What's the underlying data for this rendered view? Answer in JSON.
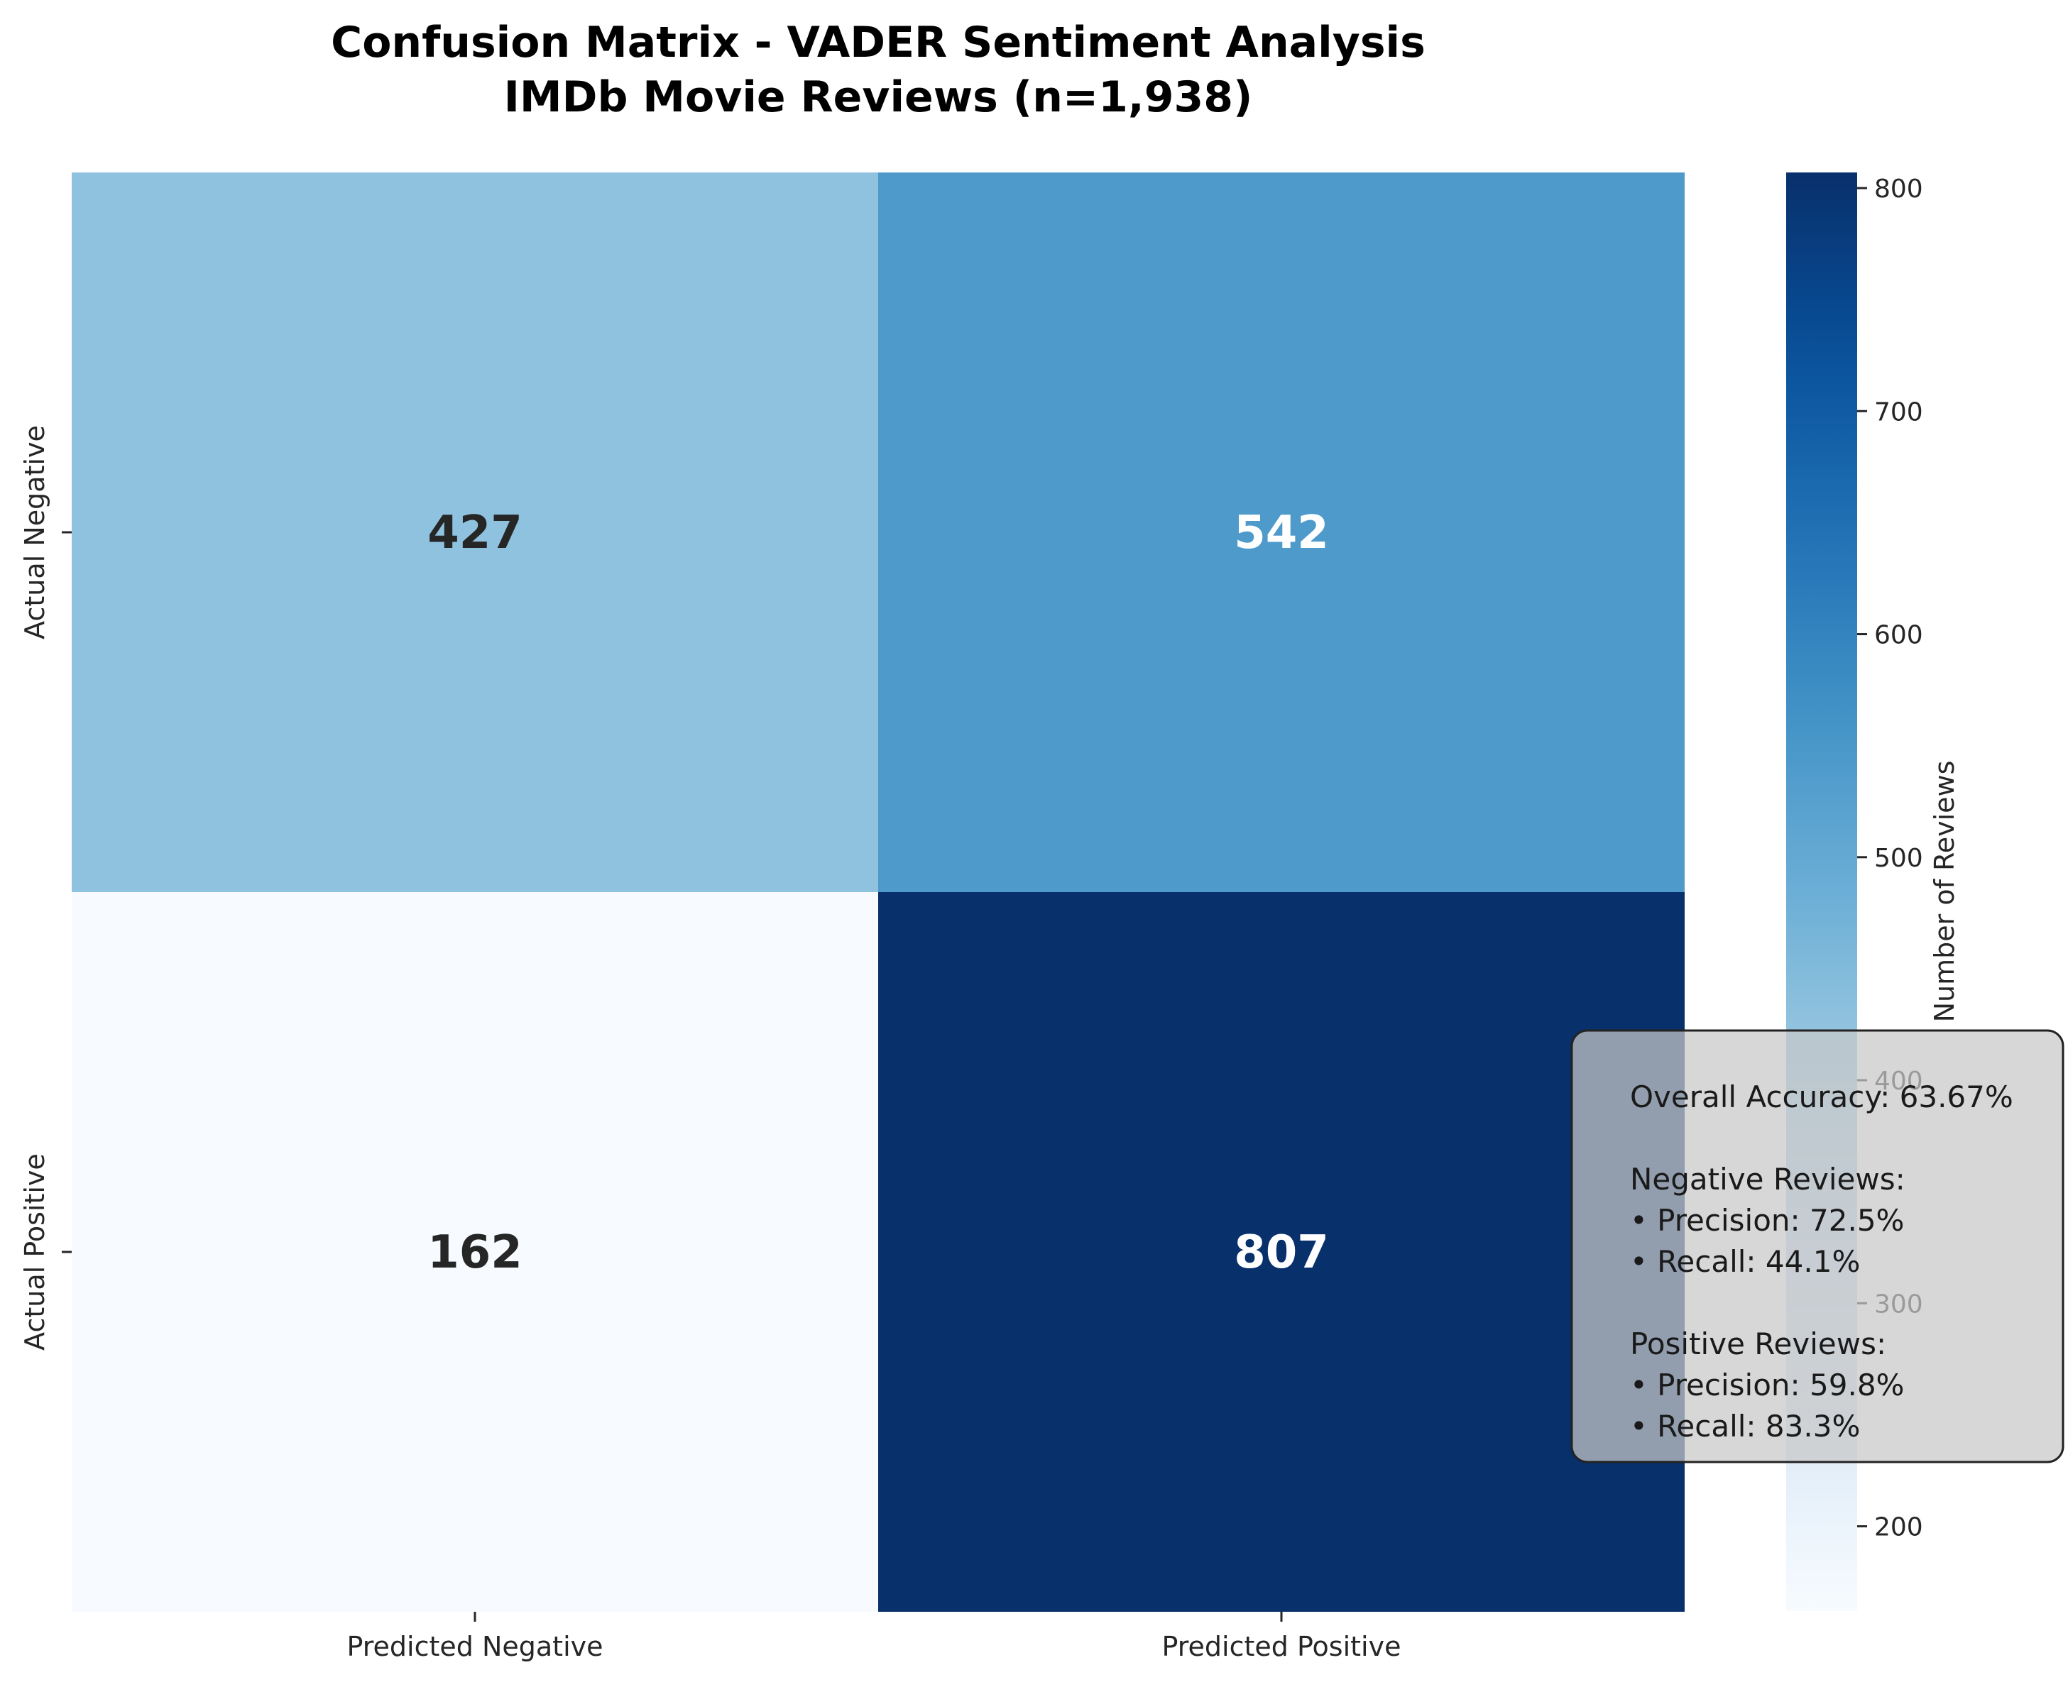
{
  "chart_data": {
    "type": "heatmap",
    "title": "Confusion Matrix - VADER Sentiment Analysis",
    "subtitle": "IMDb Movie Reviews (n=1,938)",
    "x_categories": [
      "Predicted Negative",
      "Predicted Positive"
    ],
    "y_categories": [
      "Actual Negative",
      "Actual Positive"
    ],
    "values": [
      [
        427,
        542
      ],
      [
        162,
        807
      ]
    ],
    "colormap": "Blues",
    "colorbar": {
      "label": "Number of Reviews",
      "range": [
        162,
        807
      ],
      "ticks": [
        200,
        300,
        400,
        500,
        600,
        700,
        800
      ]
    },
    "annotation_colors": {
      "dark": "#262626",
      "light": "#ffffff"
    },
    "stats_box": {
      "lines": [
        "Overall Accuracy: 63.67%",
        "",
        "Negative Reviews:",
        "• Precision: 72.5%",
        "• Recall: 44.1%",
        "",
        "Positive Reviews:",
        "• Precision: 59.8%",
        "• Recall: 83.3%"
      ]
    }
  }
}
